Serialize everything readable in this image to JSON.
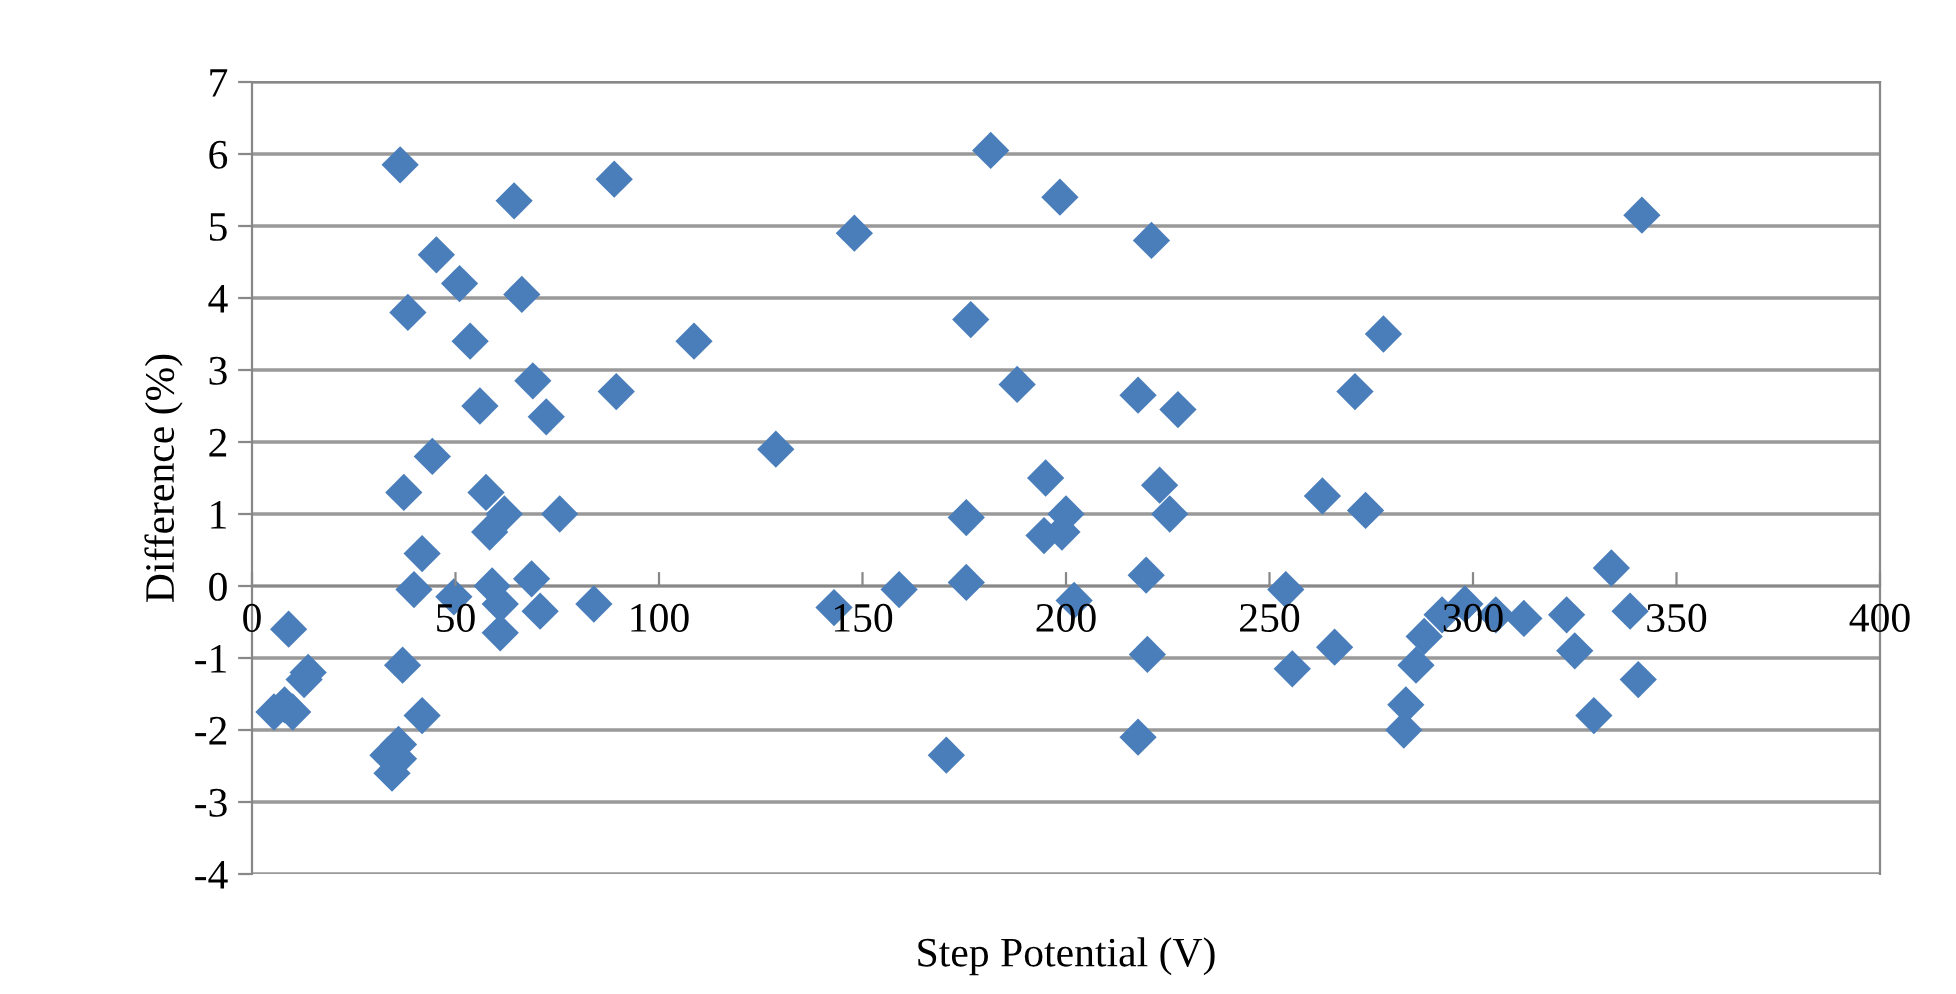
{
  "chart_data": {
    "type": "scatter",
    "xlabel": "Step Potential (V)",
    "ylabel": "Difference (%)",
    "xlim": [
      0,
      400
    ],
    "xticks": [
      0,
      50,
      100,
      150,
      200,
      250,
      300,
      350,
      400
    ],
    "ylim": [
      -4,
      7
    ],
    "yticks": [
      -4,
      -3,
      -2,
      -1,
      0,
      1,
      2,
      3,
      4,
      5,
      6,
      7
    ],
    "grid": "y",
    "legend": false,
    "marker": "diamond",
    "series": [
      {
        "color": "#4a7ebb",
        "x": [
          5.4,
          9,
          8,
          10,
          13.8,
          12.8,
          36.4,
          33.4,
          34.4,
          36,
          36,
          37,
          37.3,
          38.3,
          39.8,
          41.8,
          41.8,
          44.3,
          45.3,
          49.6,
          51,
          53.6,
          56,
          57.5,
          58.4,
          59,
          61,
          61,
          62,
          64.4,
          66.3,
          69,
          68.7,
          70.8,
          72.3,
          75.6,
          84,
          89,
          89.5,
          108.6,
          128.7,
          143,
          148,
          159,
          170.6,
          175.5,
          176.6,
          175.5,
          181.5,
          188,
          195,
          194.6,
          198.5,
          199,
          200,
          202,
          217.7,
          217.7,
          219.7,
          220,
          221,
          223,
          225.5,
          227.5,
          254,
          255.6,
          263,
          266,
          271,
          273.6,
          278,
          283,
          283.5,
          286,
          288,
          292.4,
          298,
          305.6,
          312.5,
          323,
          325,
          329.7,
          334,
          338.6,
          340.6,
          341.5
        ],
        "values": [
          -1.75,
          -0.6,
          -1.65,
          -1.75,
          -1.2,
          -1.3,
          5.85,
          -2.35,
          -2.6,
          -2.4,
          -2.2,
          -1.1,
          1.3,
          3.8,
          -0.05,
          0.45,
          -1.8,
          1.8,
          4.6,
          -0.15,
          4.2,
          3.4,
          2.5,
          1.3,
          0.75,
          0.0,
          -0.25,
          -0.65,
          1.0,
          5.35,
          4.05,
          2.85,
          0.1,
          -0.35,
          2.35,
          1.0,
          -0.25,
          5.65,
          2.7,
          3.4,
          1.9,
          -0.3,
          4.9,
          -0.05,
          -2.35,
          0.95,
          3.7,
          0.05,
          6.05,
          2.8,
          1.5,
          0.7,
          5.4,
          0.75,
          1.0,
          -0.2,
          2.65,
          -2.1,
          0.15,
          -0.95,
          4.8,
          1.4,
          1.0,
          2.45,
          -0.05,
          -1.15,
          1.25,
          -0.85,
          2.7,
          1.05,
          3.5,
          -2.0,
          -1.65,
          -1.1,
          -0.7,
          -0.4,
          -0.25,
          -0.4,
          -0.45,
          -0.4,
          -0.9,
          -1.8,
          0.25,
          -0.35,
          -1.3,
          5.15
        ]
      }
    ]
  }
}
